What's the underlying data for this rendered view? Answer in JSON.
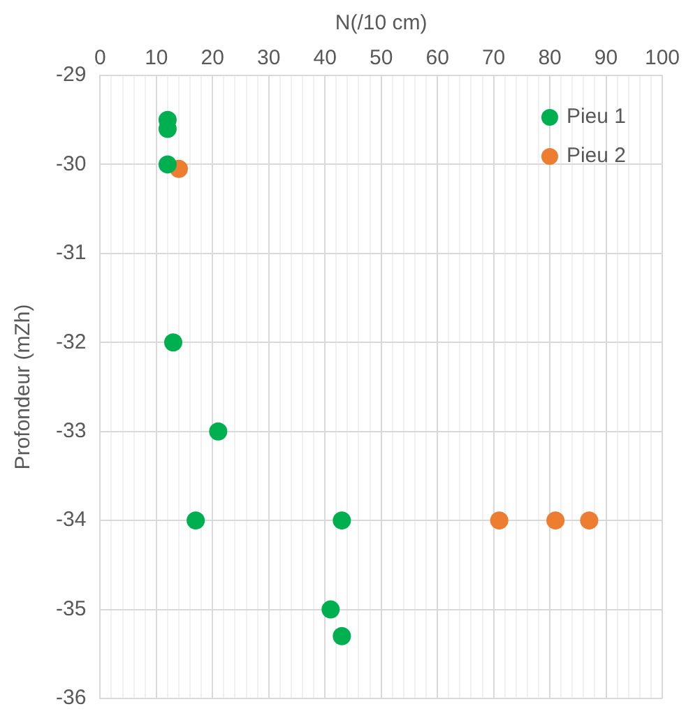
{
  "chart_data": {
    "type": "scatter",
    "xlabel": "N(/10 cm)",
    "ylabel": "Profondeur (mZh)",
    "xlim": [
      0,
      100
    ],
    "xticks": [
      0,
      {
        "value": 2,
        "label": null
      },
      {
        "value": 4,
        "label": null
      },
      {
        "value": 6,
        "label": null
      },
      {
        "value": 8,
        "label": null
      },
      10,
      {
        "value": 12,
        "label": null
      },
      {
        "value": 14,
        "label": null
      },
      {
        "value": 16,
        "label": null
      },
      {
        "value": 18,
        "label": null
      },
      20,
      {
        "value": 22,
        "label": null
      },
      {
        "value": 24,
        "label": null
      },
      {
        "value": 26,
        "label": null
      },
      {
        "value": 28,
        "label": null
      },
      30,
      {
        "value": 32,
        "label": null
      },
      {
        "value": 34,
        "label": null
      },
      {
        "value": 36,
        "label": null
      },
      {
        "value": 38,
        "label": null
      },
      40,
      {
        "value": 42,
        "label": null
      },
      {
        "value": 44,
        "label": null
      },
      {
        "value": 46,
        "label": null
      },
      {
        "value": 48,
        "label": null
      },
      50,
      {
        "value": 52,
        "label": null
      },
      {
        "value": 54,
        "label": null
      },
      {
        "value": 56,
        "label": null
      },
      {
        "value": 58,
        "label": null
      },
      60,
      {
        "value": 62,
        "label": null
      },
      {
        "value": 64,
        "label": null
      },
      {
        "value": 66,
        "label": null
      },
      {
        "value": 68,
        "label": null
      },
      70,
      {
        "value": 72,
        "label": null
      },
      {
        "value": 74,
        "label": null
      },
      {
        "value": 76,
        "label": null
      },
      {
        "value": 78,
        "label": null
      },
      80,
      {
        "value": 82,
        "label": null
      },
      {
        "value": 84,
        "label": null
      },
      {
        "value": 86,
        "label": null
      },
      {
        "value": 88,
        "label": null
      },
      90,
      {
        "value": 92,
        "label": null
      },
      {
        "value": 94,
        "label": null
      },
      {
        "value": 96,
        "label": null
      },
      {
        "value": 98,
        "label": null
      },
      100
    ],
    "ylim": [
      -36,
      -29
    ],
    "yticks": [
      -36,
      -35,
      -34,
      -33,
      -32,
      -31,
      -30,
      -29
    ],
    "grid": true,
    "legend": "top right",
    "marker": "circle",
    "series": [
      {
        "name": "Pieu 1",
        "color": "#00b050",
        "x": [
          12,
          12,
          12,
          13,
          21,
          17,
          43,
          41,
          43
        ],
        "values": [
          -29.5,
          -29.6,
          -30,
          -32,
          -33,
          -34,
          -34,
          -35,
          -35.3
        ]
      },
      {
        "name": "Pieu 2",
        "color": "#ed7d31",
        "x": [
          14,
          71,
          81,
          87
        ],
        "values": [
          -30.05,
          -34,
          -34,
          -34
        ]
      }
    ]
  }
}
